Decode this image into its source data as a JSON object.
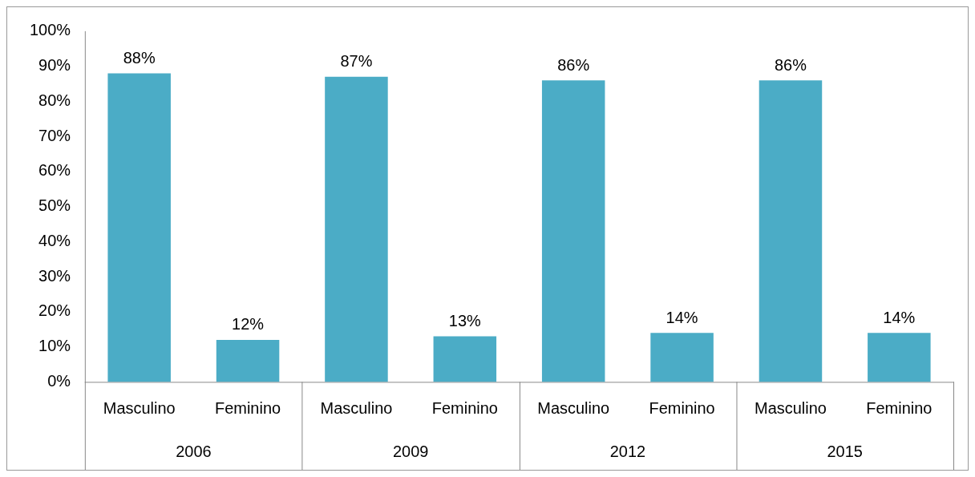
{
  "chart_data": {
    "type": "bar",
    "categories": [
      "Masculino",
      "Feminino",
      "Masculino",
      "Feminino",
      "Masculino",
      "Feminino",
      "Masculino",
      "Feminino"
    ],
    "values": [
      88,
      12,
      87,
      13,
      86,
      14,
      86,
      14
    ],
    "value_labels": [
      "88%",
      "12%",
      "87%",
      "13%",
      "86%",
      "14%",
      "86%",
      "14%"
    ],
    "color": "#4bacc6",
    "ylim": [
      0,
      100
    ],
    "yticks": [
      {
        "value": 0,
        "label": "0%"
      },
      {
        "value": 10,
        "label": "10%"
      },
      {
        "value": 20,
        "label": "20%"
      },
      {
        "value": 30,
        "label": "30%"
      },
      {
        "value": 40,
        "label": "40%"
      },
      {
        "value": 50,
        "label": "50%"
      },
      {
        "value": 60,
        "label": "60%"
      },
      {
        "value": 70,
        "label": "70%"
      },
      {
        "value": 80,
        "label": "80%"
      },
      {
        "value": 90,
        "label": "90%"
      },
      {
        "value": 100,
        "label": "100%"
      }
    ],
    "annotations": [
      "2006",
      "2009",
      "2012",
      "2015"
    ],
    "grid": false,
    "legend": false
  }
}
